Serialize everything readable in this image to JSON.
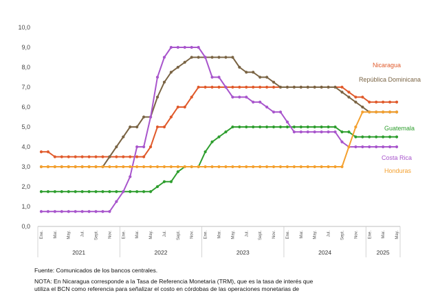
{
  "chart_data": {
    "type": "line",
    "title": "",
    "xlabel": "",
    "ylabel": "",
    "ylim": [
      0,
      10
    ],
    "ytick_labels": [
      "0,0",
      "1,0",
      "2,0",
      "3,0",
      "4,0",
      "5,0",
      "6,0",
      "7,0",
      "8,0",
      "9,0",
      "10,0"
    ],
    "month_labels": [
      "Ene.",
      "Mar.",
      "May.",
      "Jul.",
      "Sept.",
      "Nov."
    ],
    "years": [
      {
        "label": "2021",
        "months": 12
      },
      {
        "label": "2022",
        "months": 12
      },
      {
        "label": "2023",
        "months": 12
      },
      {
        "label": "2024",
        "months": 12
      },
      {
        "label": "2025",
        "months": 5
      }
    ],
    "x": [
      "2021-01",
      "2021-02",
      "2021-03",
      "2021-04",
      "2021-05",
      "2021-06",
      "2021-07",
      "2021-08",
      "2021-09",
      "2021-10",
      "2021-11",
      "2021-12",
      "2022-01",
      "2022-02",
      "2022-03",
      "2022-04",
      "2022-05",
      "2022-06",
      "2022-07",
      "2022-08",
      "2022-09",
      "2022-10",
      "2022-11",
      "2022-12",
      "2023-01",
      "2023-02",
      "2023-03",
      "2023-04",
      "2023-05",
      "2023-06",
      "2023-07",
      "2023-08",
      "2023-09",
      "2023-10",
      "2023-11",
      "2023-12",
      "2024-01",
      "2024-02",
      "2024-03",
      "2024-04",
      "2024-05",
      "2024-06",
      "2024-07",
      "2024-08",
      "2024-09",
      "2024-10",
      "2024-11",
      "2024-12",
      "2025-01",
      "2025-02",
      "2025-03",
      "2025-04",
      "2025-05"
    ],
    "grid": false,
    "legend": "inline labels at right",
    "series": [
      {
        "name": "Nicaragua",
        "color": "#E05A2B",
        "values": [
          3.75,
          3.75,
          3.5,
          3.5,
          3.5,
          3.5,
          3.5,
          3.5,
          3.5,
          3.5,
          3.5,
          3.5,
          3.5,
          3.5,
          3.5,
          3.5,
          4.0,
          5.0,
          5.0,
          5.5,
          6.0,
          6.0,
          6.5,
          7.0,
          7.0,
          7.0,
          7.0,
          7.0,
          7.0,
          7.0,
          7.0,
          7.0,
          7.0,
          7.0,
          7.0,
          7.0,
          7.0,
          7.0,
          7.0,
          7.0,
          7.0,
          7.0,
          7.0,
          7.0,
          7.0,
          6.75,
          6.5,
          6.5,
          6.25,
          6.25,
          6.25,
          6.25,
          6.25
        ]
      },
      {
        "name": "República Dominicana",
        "color": "#7A6444",
        "values": [
          3.0,
          3.0,
          3.0,
          3.0,
          3.0,
          3.0,
          3.0,
          3.0,
          3.0,
          3.0,
          3.5,
          4.0,
          4.5,
          5.0,
          5.0,
          5.5,
          5.5,
          6.5,
          7.25,
          7.75,
          8.0,
          8.25,
          8.5,
          8.5,
          8.5,
          8.5,
          8.5,
          8.5,
          8.5,
          8.0,
          7.75,
          7.75,
          7.5,
          7.5,
          7.25,
          7.0,
          7.0,
          7.0,
          7.0,
          7.0,
          7.0,
          7.0,
          7.0,
          7.0,
          6.75,
          6.5,
          6.25,
          6.0,
          5.75,
          5.75,
          5.75,
          5.75,
          5.75
        ]
      },
      {
        "name": "Guatemala",
        "color": "#2E9E2E",
        "values": [
          1.75,
          1.75,
          1.75,
          1.75,
          1.75,
          1.75,
          1.75,
          1.75,
          1.75,
          1.75,
          1.75,
          1.75,
          1.75,
          1.75,
          1.75,
          1.75,
          1.75,
          2.0,
          2.25,
          2.25,
          2.75,
          3.0,
          3.0,
          3.0,
          3.75,
          4.25,
          4.5,
          4.75,
          5.0,
          5.0,
          5.0,
          5.0,
          5.0,
          5.0,
          5.0,
          5.0,
          5.0,
          5.0,
          5.0,
          5.0,
          5.0,
          5.0,
          5.0,
          5.0,
          4.75,
          4.75,
          4.5,
          4.5,
          4.5,
          4.5,
          4.5,
          4.5,
          4.5
        ]
      },
      {
        "name": "Costa Rica",
        "color": "#A855CC",
        "values": [
          0.75,
          0.75,
          0.75,
          0.75,
          0.75,
          0.75,
          0.75,
          0.75,
          0.75,
          0.75,
          0.75,
          1.25,
          1.75,
          2.5,
          4.0,
          4.0,
          5.5,
          7.5,
          8.5,
          9.0,
          9.0,
          9.0,
          9.0,
          9.0,
          8.5,
          7.5,
          7.5,
          7.0,
          6.5,
          6.5,
          6.5,
          6.25,
          6.25,
          6.0,
          5.75,
          5.75,
          5.25,
          4.75,
          4.75,
          4.75,
          4.75,
          4.75,
          4.75,
          4.75,
          4.25,
          4.0,
          4.0,
          4.0,
          4.0,
          4.0,
          4.0,
          4.0,
          4.0
        ]
      },
      {
        "name": "Honduras",
        "color": "#F4A02E",
        "values": [
          3.0,
          3.0,
          3.0,
          3.0,
          3.0,
          3.0,
          3.0,
          3.0,
          3.0,
          3.0,
          3.0,
          3.0,
          3.0,
          3.0,
          3.0,
          3.0,
          3.0,
          3.0,
          3.0,
          3.0,
          3.0,
          3.0,
          3.0,
          3.0,
          3.0,
          3.0,
          3.0,
          3.0,
          3.0,
          3.0,
          3.0,
          3.0,
          3.0,
          3.0,
          3.0,
          3.0,
          3.0,
          3.0,
          3.0,
          3.0,
          3.0,
          3.0,
          3.0,
          3.0,
          3.0,
          4.0,
          5.0,
          5.75,
          5.75,
          5.75,
          5.75,
          5.75,
          5.75
        ]
      }
    ]
  },
  "source": "Fuente: Comunicados de los bancos centrales.",
  "note": "NOTA: En Nicaragua corresponde a la Tasa de Referencia Monetaria (TRM), que es la tasa de interés que",
  "note_line2": "utiliza el BCN como referencia para señalizar el costo en córdobas de las operaciones monetarias de"
}
